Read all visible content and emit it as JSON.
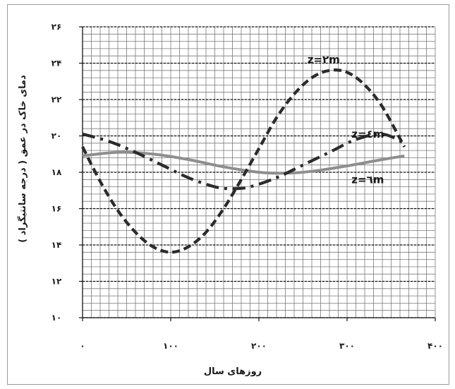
{
  "chart_data": {
    "type": "line",
    "xlabel": "روزهای سال",
    "ylabel": "دمای خاک در عمق ( درجه سانتیگراد )",
    "xlim": [
      0,
      400
    ],
    "ylim": [
      10,
      26
    ],
    "x_ticks": [
      0,
      100,
      200,
      300,
      400
    ],
    "x_tick_labels": [
      "۰",
      "۱۰۰",
      "۲۰۰",
      "۳۰۰",
      "۴۰۰"
    ],
    "y_ticks": [
      10,
      12,
      14,
      16,
      18,
      20,
      22,
      24,
      26
    ],
    "y_tick_labels": [
      "۱۰",
      "۱۲",
      "۱۴",
      "۱۶",
      "۱۸",
      "۲۰",
      "۲۲",
      "۲۴",
      "۲۶"
    ],
    "grid": true,
    "series": [
      {
        "name": "z=۲m",
        "color": "#2b2b2b",
        "style": "dashed",
        "x": [
          0,
          20,
          40,
          60,
          80,
          100,
          120,
          140,
          160,
          180,
          200,
          220,
          240,
          260,
          280,
          300,
          320,
          340,
          365
        ],
        "y": [
          19.4,
          17.5,
          15.9,
          14.7,
          13.9,
          13.6,
          13.9,
          14.7,
          16.0,
          17.6,
          19.3,
          21.0,
          22.3,
          23.2,
          23.6,
          23.5,
          22.8,
          21.6,
          19.4
        ]
      },
      {
        "name": "z=٤m",
        "color": "#2b2b2b",
        "style": "dashdot",
        "x": [
          0,
          30,
          60,
          90,
          120,
          150,
          170,
          190,
          220,
          250,
          280,
          310,
          340,
          365
        ],
        "y": [
          20.1,
          19.7,
          19.1,
          18.4,
          17.7,
          17.2,
          17.1,
          17.2,
          17.7,
          18.4,
          19.1,
          19.8,
          20.1,
          19.6
        ]
      },
      {
        "name": "z=٦m",
        "color": "#8e8e8e",
        "style": "solid",
        "x": [
          0,
          40,
          80,
          120,
          160,
          200,
          230,
          260,
          300,
          340,
          365
        ],
        "y": [
          18.9,
          19.1,
          19.0,
          18.7,
          18.3,
          18.0,
          17.95,
          18.05,
          18.35,
          18.7,
          18.9
        ]
      }
    ]
  }
}
